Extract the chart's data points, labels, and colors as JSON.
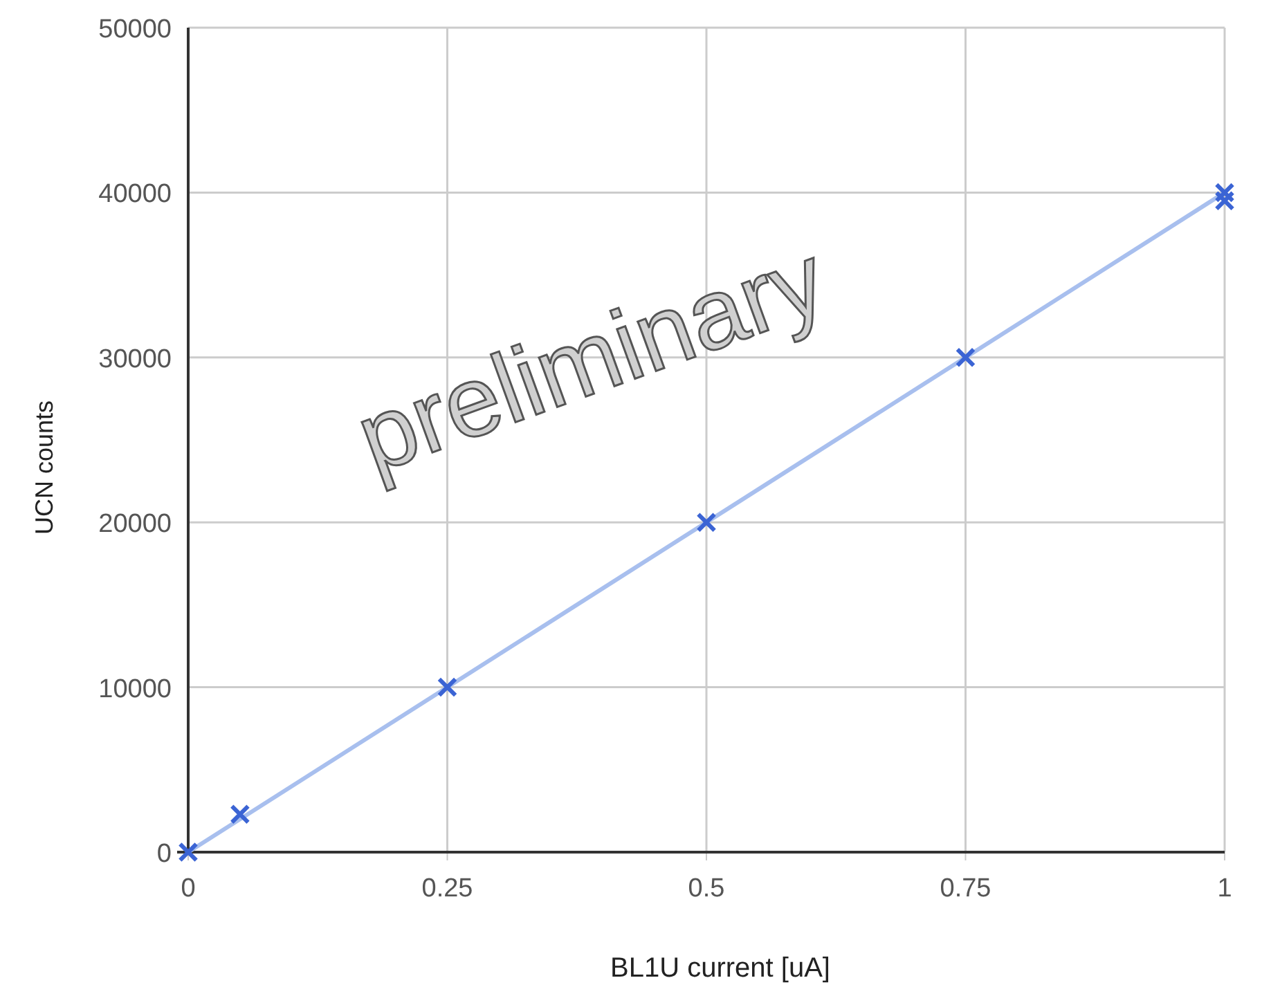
{
  "chart_data": {
    "type": "scatter",
    "xlabel": "BL1U current [uA]",
    "ylabel": "UCN counts",
    "annotations": [
      "preliminary"
    ],
    "xlim": [
      0,
      1
    ],
    "xticks": [
      0,
      0.25,
      0.5,
      0.75,
      1
    ],
    "ylim": [
      0,
      50000
    ],
    "yticks": [
      0,
      10000,
      20000,
      30000,
      40000,
      50000
    ],
    "grid": true,
    "marker": "cross",
    "series": [
      {
        "type": "line",
        "color": "#a8bfee",
        "x": [
          0,
          1
        ],
        "values": [
          0,
          40000
        ],
        "marker": "none"
      },
      {
        "color": "#3b64d4",
        "x": [
          0,
          0.05,
          0.25,
          0.5,
          0.75,
          1,
          1
        ],
        "values": [
          0,
          2300,
          10000,
          20000,
          30000,
          40000,
          39500
        ]
      }
    ]
  }
}
